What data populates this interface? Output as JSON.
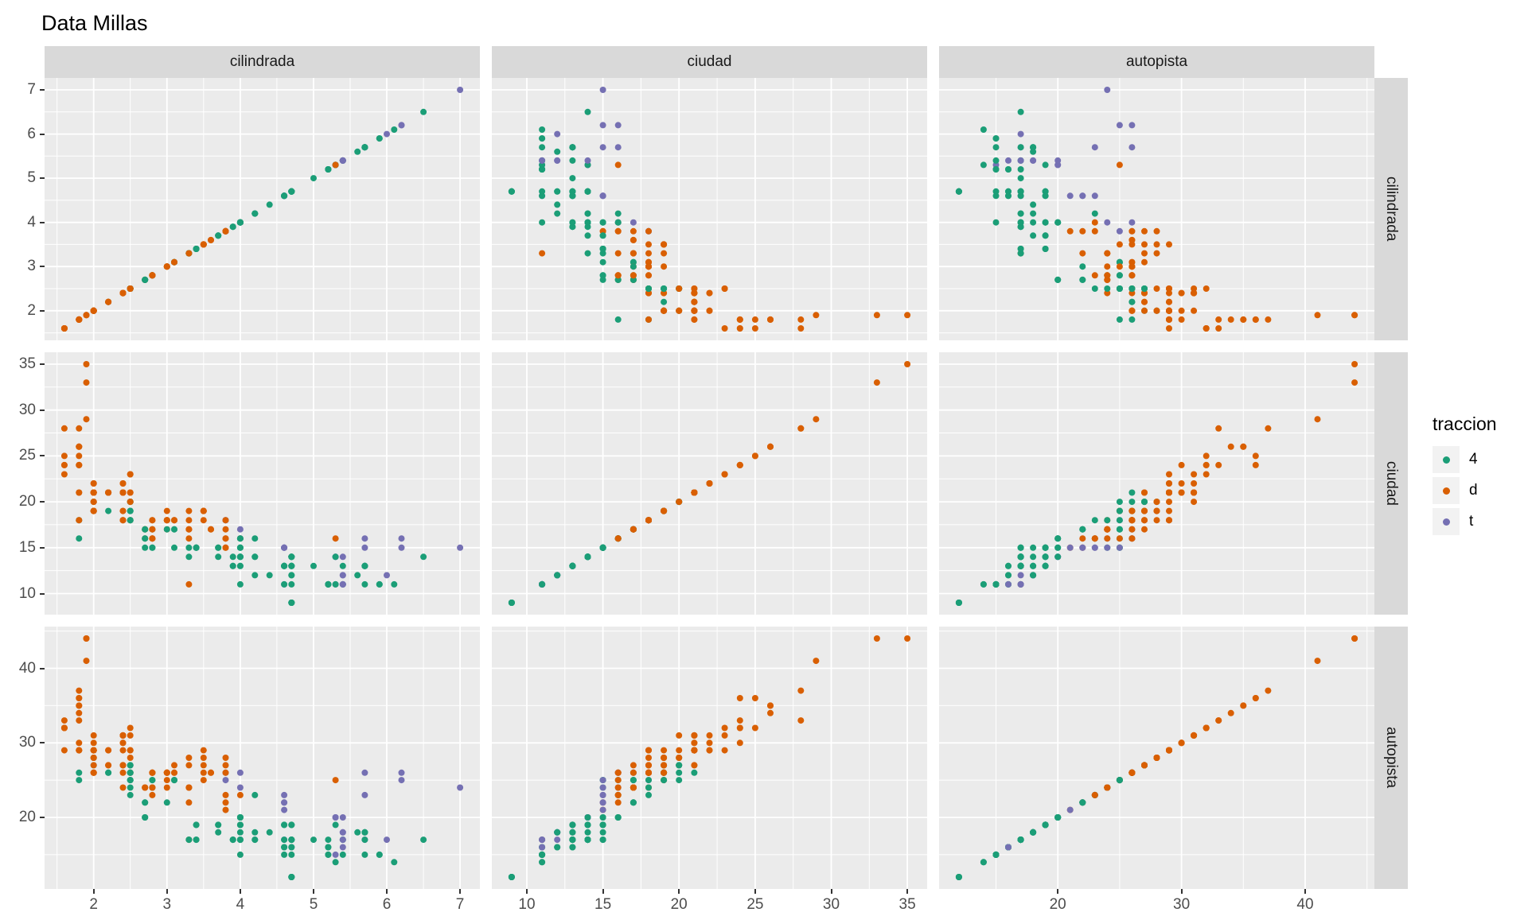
{
  "title": "Data Millas",
  "legend": {
    "title": "traccion",
    "items": [
      {
        "label": "4",
        "color": "#1b9e77"
      },
      {
        "label": "d",
        "color": "#d95f02"
      },
      {
        "label": "t",
        "color": "#7570b3"
      }
    ]
  },
  "chart_data": {
    "type": "scatter",
    "title": "Data Millas",
    "description": "3x3 faceted scatterplot matrix of cilindrada (engine displacement, L), ciudad (city miles-per-gallon) and autopista (highway miles-per-gallon), points colored by traccion (drive: 4, d, t). Diagonal panels plot each variable against itself.",
    "facets": [
      "cilindrada",
      "ciudad",
      "autopista"
    ],
    "legend_title": "traccion",
    "legend_position": "right",
    "grid": "on",
    "panel_bg": "#ebebeb",
    "strip_bg": "#d9d9d9",
    "grid_major_color": "#ffffff",
    "grid_minor_color": "#ffffff",
    "axes": {
      "cilindrada": {
        "range": [
          1.33,
          7.27
        ],
        "major_ticks": [
          2,
          3,
          4,
          5,
          6,
          7
        ],
        "minor_ticks": [
          1.5,
          2.5,
          3.5,
          4.5,
          5.5,
          6.5
        ]
      },
      "ciudad": {
        "range": [
          7.7,
          36.3
        ],
        "major_ticks": [
          10,
          15,
          20,
          25,
          30,
          35
        ],
        "minor_ticks": [
          12.5,
          17.5,
          22.5,
          27.5,
          32.5
        ]
      },
      "autopista": {
        "range": [
          10.4,
          45.6
        ],
        "major_ticks": [
          20,
          30,
          40
        ],
        "minor_ticks": [
          15,
          25,
          35,
          45
        ]
      }
    },
    "point_key": [
      "cilindrada",
      "ciudad",
      "autopista",
      "traccion"
    ],
    "points": [
      [
        1.8,
        18,
        29,
        "d"
      ],
      [
        1.8,
        21,
        29,
        "d"
      ],
      [
        2,
        20,
        31,
        "d"
      ],
      [
        2,
        21,
        30,
        "d"
      ],
      [
        2.8,
        16,
        26,
        "d"
      ],
      [
        2.8,
        18,
        26,
        "d"
      ],
      [
        3.1,
        18,
        27,
        "d"
      ],
      [
        1.8,
        18,
        26,
        "4"
      ],
      [
        1.8,
        16,
        25,
        "4"
      ],
      [
        2,
        20,
        28,
        "4"
      ],
      [
        2,
        19,
        27,
        "4"
      ],
      [
        2.8,
        15,
        25,
        "4"
      ],
      [
        2.8,
        17,
        25,
        "4"
      ],
      [
        3.1,
        17,
        25,
        "4"
      ],
      [
        3.1,
        15,
        25,
        "4"
      ],
      [
        2.8,
        15,
        24,
        "4"
      ],
      [
        3.1,
        17,
        25,
        "4"
      ],
      [
        4.2,
        16,
        23,
        "4"
      ],
      [
        5.3,
        14,
        20,
        "t"
      ],
      [
        5.3,
        11,
        15,
        "t"
      ],
      [
        5.3,
        14,
        20,
        "t"
      ],
      [
        5.7,
        13,
        17,
        "t"
      ],
      [
        6,
        12,
        17,
        "t"
      ],
      [
        5.7,
        16,
        26,
        "t"
      ],
      [
        5.7,
        15,
        23,
        "t"
      ],
      [
        6.2,
        16,
        26,
        "t"
      ],
      [
        6.2,
        15,
        25,
        "t"
      ],
      [
        7,
        15,
        24,
        "t"
      ],
      [
        5.3,
        14,
        19,
        "4"
      ],
      [
        5.3,
        11,
        14,
        "4"
      ],
      [
        5.7,
        11,
        15,
        "4"
      ],
      [
        6.5,
        14,
        17,
        "4"
      ],
      [
        2.4,
        19,
        27,
        "d"
      ],
      [
        2.4,
        22,
        30,
        "d"
      ],
      [
        3.1,
        18,
        26,
        "d"
      ],
      [
        3.5,
        18,
        29,
        "d"
      ],
      [
        3.6,
        17,
        26,
        "d"
      ],
      [
        2.4,
        18,
        24,
        "d"
      ],
      [
        3,
        17,
        24,
        "d"
      ],
      [
        3.3,
        16,
        22,
        "d"
      ],
      [
        3.3,
        17,
        24,
        "d"
      ],
      [
        3.3,
        17,
        24,
        "d"
      ],
      [
        3.3,
        17,
        24,
        "d"
      ],
      [
        3.3,
        11,
        17,
        "d"
      ],
      [
        3.8,
        15,
        22,
        "d"
      ],
      [
        3.8,
        15,
        21,
        "d"
      ],
      [
        3.8,
        16,
        23,
        "d"
      ],
      [
        4,
        16,
        23,
        "d"
      ],
      [
        3.7,
        15,
        19,
        "4"
      ],
      [
        3.7,
        14,
        18,
        "4"
      ],
      [
        3.9,
        13,
        17,
        "4"
      ],
      [
        3.9,
        14,
        17,
        "4"
      ],
      [
        4.7,
        14,
        19,
        "4"
      ],
      [
        4.7,
        14,
        19,
        "4"
      ],
      [
        4.7,
        9,
        12,
        "4"
      ],
      [
        5.2,
        11,
        17,
        "4"
      ],
      [
        5.2,
        11,
        15,
        "4"
      ],
      [
        3.9,
        13,
        17,
        "4"
      ],
      [
        4.7,
        13,
        17,
        "4"
      ],
      [
        4.7,
        9,
        12,
        "4"
      ],
      [
        4.7,
        13,
        17,
        "4"
      ],
      [
        5.2,
        11,
        16,
        "4"
      ],
      [
        5.7,
        13,
        18,
        "4"
      ],
      [
        5.9,
        11,
        15,
        "4"
      ],
      [
        4.7,
        12,
        16,
        "4"
      ],
      [
        4.7,
        9,
        12,
        "4"
      ],
      [
        4.7,
        13,
        17,
        "4"
      ],
      [
        4.7,
        13,
        17,
        "4"
      ],
      [
        4.7,
        12,
        16,
        "4"
      ],
      [
        4.7,
        9,
        12,
        "4"
      ],
      [
        5.2,
        11,
        15,
        "4"
      ],
      [
        5.2,
        11,
        16,
        "4"
      ],
      [
        5.7,
        13,
        17,
        "4"
      ],
      [
        5.9,
        11,
        15,
        "4"
      ],
      [
        4.6,
        11,
        17,
        "t"
      ],
      [
        5.4,
        11,
        17,
        "t"
      ],
      [
        5.4,
        12,
        18,
        "t"
      ],
      [
        4,
        14,
        17,
        "4"
      ],
      [
        4,
        15,
        19,
        "4"
      ],
      [
        4,
        14,
        17,
        "4"
      ],
      [
        4,
        13,
        19,
        "4"
      ],
      [
        4.6,
        13,
        19,
        "4"
      ],
      [
        4,
        14,
        17,
        "4"
      ],
      [
        4.2,
        14,
        17,
        "4"
      ],
      [
        4.2,
        14,
        17,
        "4"
      ],
      [
        4.6,
        13,
        16,
        "4"
      ],
      [
        4.6,
        13,
        16,
        "4"
      ],
      [
        4.6,
        13,
        17,
        "4"
      ],
      [
        5.4,
        11,
        15,
        "4"
      ],
      [
        5.4,
        13,
        17,
        "4"
      ],
      [
        3.8,
        18,
        26,
        "t"
      ],
      [
        3.8,
        18,
        25,
        "t"
      ],
      [
        4,
        17,
        26,
        "t"
      ],
      [
        4,
        16,
        24,
        "t"
      ],
      [
        4.6,
        15,
        21,
        "t"
      ],
      [
        4.6,
        15,
        22,
        "t"
      ],
      [
        4.6,
        15,
        23,
        "t"
      ],
      [
        4.6,
        15,
        22,
        "t"
      ],
      [
        5.4,
        14,
        20,
        "t"
      ],
      [
        1.6,
        28,
        33,
        "d"
      ],
      [
        1.6,
        24,
        32,
        "d"
      ],
      [
        1.6,
        25,
        32,
        "d"
      ],
      [
        1.6,
        23,
        29,
        "d"
      ],
      [
        1.6,
        24,
        32,
        "d"
      ],
      [
        1.8,
        26,
        34,
        "d"
      ],
      [
        1.8,
        25,
        36,
        "d"
      ],
      [
        1.8,
        24,
        36,
        "d"
      ],
      [
        2,
        21,
        29,
        "d"
      ],
      [
        2.4,
        18,
        26,
        "d"
      ],
      [
        2.4,
        18,
        27,
        "d"
      ],
      [
        2.4,
        21,
        30,
        "d"
      ],
      [
        2.4,
        21,
        31,
        "d"
      ],
      [
        2.5,
        18,
        26,
        "d"
      ],
      [
        2.5,
        18,
        26,
        "d"
      ],
      [
        3.3,
        19,
        28,
        "d"
      ],
      [
        2,
        19,
        26,
        "d"
      ],
      [
        2,
        19,
        29,
        "d"
      ],
      [
        2,
        20,
        28,
        "d"
      ],
      [
        2,
        20,
        27,
        "d"
      ],
      [
        2.7,
        17,
        24,
        "d"
      ],
      [
        2.7,
        16,
        24,
        "d"
      ],
      [
        2.7,
        17,
        24,
        "d"
      ],
      [
        3,
        17,
        22,
        "4"
      ],
      [
        3.7,
        15,
        19,
        "4"
      ],
      [
        4,
        15,
        20,
        "4"
      ],
      [
        4.7,
        14,
        17,
        "4"
      ],
      [
        4.7,
        9,
        12,
        "4"
      ],
      [
        4.7,
        14,
        19,
        "4"
      ],
      [
        5.7,
        13,
        18,
        "4"
      ],
      [
        6.1,
        11,
        14,
        "4"
      ],
      [
        4,
        11,
        15,
        "4"
      ],
      [
        4.2,
        12,
        18,
        "4"
      ],
      [
        4.4,
        12,
        18,
        "4"
      ],
      [
        4.6,
        11,
        15,
        "4"
      ],
      [
        5.4,
        11,
        17,
        "t"
      ],
      [
        5.4,
        11,
        16,
        "t"
      ],
      [
        5.4,
        12,
        18,
        "t"
      ],
      [
        4,
        14,
        17,
        "4"
      ],
      [
        4,
        13,
        19,
        "4"
      ],
      [
        4.6,
        13,
        19,
        "4"
      ],
      [
        5,
        13,
        17,
        "4"
      ],
      [
        2.4,
        21,
        29,
        "d"
      ],
      [
        2.4,
        19,
        27,
        "d"
      ],
      [
        2.5,
        23,
        31,
        "d"
      ],
      [
        2.5,
        23,
        32,
        "d"
      ],
      [
        3.5,
        19,
        27,
        "d"
      ],
      [
        3.5,
        19,
        26,
        "d"
      ],
      [
        3,
        18,
        26,
        "d"
      ],
      [
        3,
        19,
        25,
        "d"
      ],
      [
        3.5,
        19,
        25,
        "d"
      ],
      [
        3.3,
        14,
        17,
        "4"
      ],
      [
        3.3,
        15,
        17,
        "4"
      ],
      [
        4,
        14,
        20,
        "4"
      ],
      [
        5.6,
        12,
        18,
        "4"
      ],
      [
        3.1,
        18,
        26,
        "d"
      ],
      [
        3.8,
        16,
        26,
        "d"
      ],
      [
        3.8,
        17,
        27,
        "d"
      ],
      [
        3.8,
        18,
        28,
        "d"
      ],
      [
        5.3,
        16,
        25,
        "d"
      ],
      [
        2.5,
        18,
        25,
        "4"
      ],
      [
        2.5,
        18,
        24,
        "4"
      ],
      [
        2.5,
        20,
        27,
        "4"
      ],
      [
        2.5,
        19,
        25,
        "4"
      ],
      [
        2.5,
        20,
        26,
        "4"
      ],
      [
        2.5,
        18,
        23,
        "4"
      ],
      [
        2.2,
        21,
        26,
        "4"
      ],
      [
        2.2,
        19,
        26,
        "4"
      ],
      [
        2.5,
        19,
        26,
        "4"
      ],
      [
        2.5,
        19,
        26,
        "4"
      ],
      [
        2.5,
        20,
        25,
        "4"
      ],
      [
        2.5,
        20,
        27,
        "4"
      ],
      [
        2.5,
        19,
        25,
        "4"
      ],
      [
        2.5,
        20,
        27,
        "4"
      ],
      [
        2.7,
        15,
        20,
        "4"
      ],
      [
        2.7,
        16,
        20,
        "4"
      ],
      [
        3.4,
        15,
        19,
        "4"
      ],
      [
        3.4,
        15,
        17,
        "4"
      ],
      [
        4,
        16,
        20,
        "4"
      ],
      [
        4.7,
        14,
        17,
        "4"
      ],
      [
        2.2,
        21,
        29,
        "d"
      ],
      [
        2.2,
        21,
        27,
        "d"
      ],
      [
        2.4,
        21,
        31,
        "d"
      ],
      [
        2.4,
        21,
        31,
        "d"
      ],
      [
        3,
        18,
        26,
        "d"
      ],
      [
        3,
        18,
        26,
        "d"
      ],
      [
        3.5,
        19,
        28,
        "d"
      ],
      [
        2.2,
        21,
        27,
        "d"
      ],
      [
        2.2,
        21,
        29,
        "d"
      ],
      [
        2.4,
        21,
        31,
        "d"
      ],
      [
        2.4,
        22,
        31,
        "d"
      ],
      [
        3,
        18,
        26,
        "d"
      ],
      [
        3,
        18,
        26,
        "d"
      ],
      [
        3.3,
        18,
        27,
        "d"
      ],
      [
        1.8,
        24,
        30,
        "d"
      ],
      [
        1.8,
        24,
        33,
        "d"
      ],
      [
        1.8,
        26,
        35,
        "d"
      ],
      [
        1.8,
        28,
        37,
        "d"
      ],
      [
        1.8,
        26,
        35,
        "d"
      ],
      [
        4.7,
        11,
        15,
        "4"
      ],
      [
        5.7,
        13,
        18,
        "4"
      ],
      [
        2.7,
        17,
        22,
        "4"
      ],
      [
        2.7,
        16,
        20,
        "4"
      ],
      [
        2.7,
        17,
        22,
        "4"
      ],
      [
        3.4,
        15,
        17,
        "4"
      ],
      [
        3.4,
        15,
        19,
        "4"
      ],
      [
        4,
        15,
        18,
        "4"
      ],
      [
        4,
        16,
        20,
        "4"
      ],
      [
        2,
        21,
        29,
        "d"
      ],
      [
        2,
        19,
        26,
        "d"
      ],
      [
        2,
        21,
        29,
        "d"
      ],
      [
        2,
        22,
        29,
        "d"
      ],
      [
        2.8,
        17,
        24,
        "d"
      ],
      [
        1.9,
        33,
        44,
        "d"
      ],
      [
        2,
        21,
        29,
        "d"
      ],
      [
        2,
        19,
        26,
        "d"
      ],
      [
        2,
        22,
        29,
        "d"
      ],
      [
        2,
        21,
        29,
        "d"
      ],
      [
        2.5,
        21,
        29,
        "d"
      ],
      [
        2.5,
        21,
        29,
        "d"
      ],
      [
        2.8,
        16,
        23,
        "d"
      ],
      [
        2.8,
        17,
        24,
        "d"
      ],
      [
        1.9,
        35,
        44,
        "d"
      ],
      [
        1.9,
        29,
        41,
        "d"
      ],
      [
        2,
        21,
        29,
        "d"
      ],
      [
        2,
        19,
        26,
        "d"
      ],
      [
        2.5,
        20,
        28,
        "d"
      ],
      [
        2.5,
        20,
        29,
        "d"
      ],
      [
        1.8,
        21,
        29,
        "d"
      ],
      [
        1.8,
        18,
        29,
        "d"
      ],
      [
        2,
        19,
        28,
        "d"
      ],
      [
        2,
        21,
        29,
        "d"
      ],
      [
        2.8,
        16,
        26,
        "d"
      ],
      [
        2.8,
        18,
        26,
        "d"
      ],
      [
        3.6,
        17,
        26,
        "d"
      ]
    ]
  }
}
